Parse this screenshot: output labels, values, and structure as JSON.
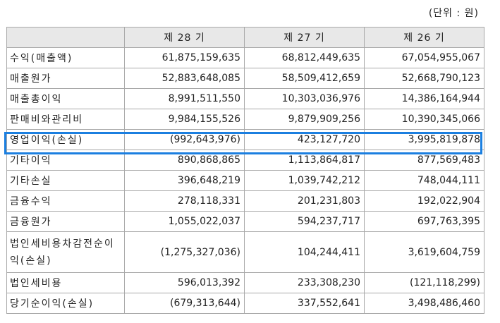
{
  "unit_label": "(단위 : 원)",
  "columns": [
    "제 28 기",
    "제 27 기",
    "제 26 기"
  ],
  "rows": [
    {
      "label": "수익(매출액)",
      "values": [
        "61,875,159,635",
        "68,812,449,635",
        "67,054,955,067"
      ]
    },
    {
      "label": "매출원가",
      "values": [
        "52,883,648,085",
        "58,509,412,659",
        "52,668,790,123"
      ]
    },
    {
      "label": "매출총이익",
      "values": [
        "8,991,511,550",
        "10,303,036,976",
        "14,386,164,944"
      ]
    },
    {
      "label": "판매비와관리비",
      "values": [
        "9,984,155,526",
        "9,879,909,256",
        "10,390,345,066"
      ]
    },
    {
      "label": "영업이익(손실)",
      "values": [
        "(992,643,976)",
        "423,127,720",
        "3,995,819,878"
      ]
    },
    {
      "label": "기타이익",
      "values": [
        "890,868,865",
        "1,113,864,817",
        "877,569,483"
      ]
    },
    {
      "label": "기타손실",
      "values": [
        "396,648,219",
        "1,039,742,212",
        "748,044,111"
      ]
    },
    {
      "label": "금융수익",
      "values": [
        "278,118,331",
        "201,231,803",
        "192,022,904"
      ]
    },
    {
      "label": "금융원가",
      "values": [
        "1,055,022,037",
        "594,237,717",
        "697,763,395"
      ]
    },
    {
      "label": "법인세비용차감전순이익(손실)",
      "values": [
        "(1,275,327,036)",
        "104,244,411",
        "3,619,604,759"
      ]
    },
    {
      "label": "법인세비용",
      "values": [
        "596,013,392",
        "233,308,230",
        "(121,118,299)"
      ]
    },
    {
      "label": "당기순이익(손실)",
      "values": [
        "(679,313,644)",
        "337,552,641",
        "3,498,486,460"
      ]
    }
  ],
  "highlight_color": "#1b7fe0"
}
